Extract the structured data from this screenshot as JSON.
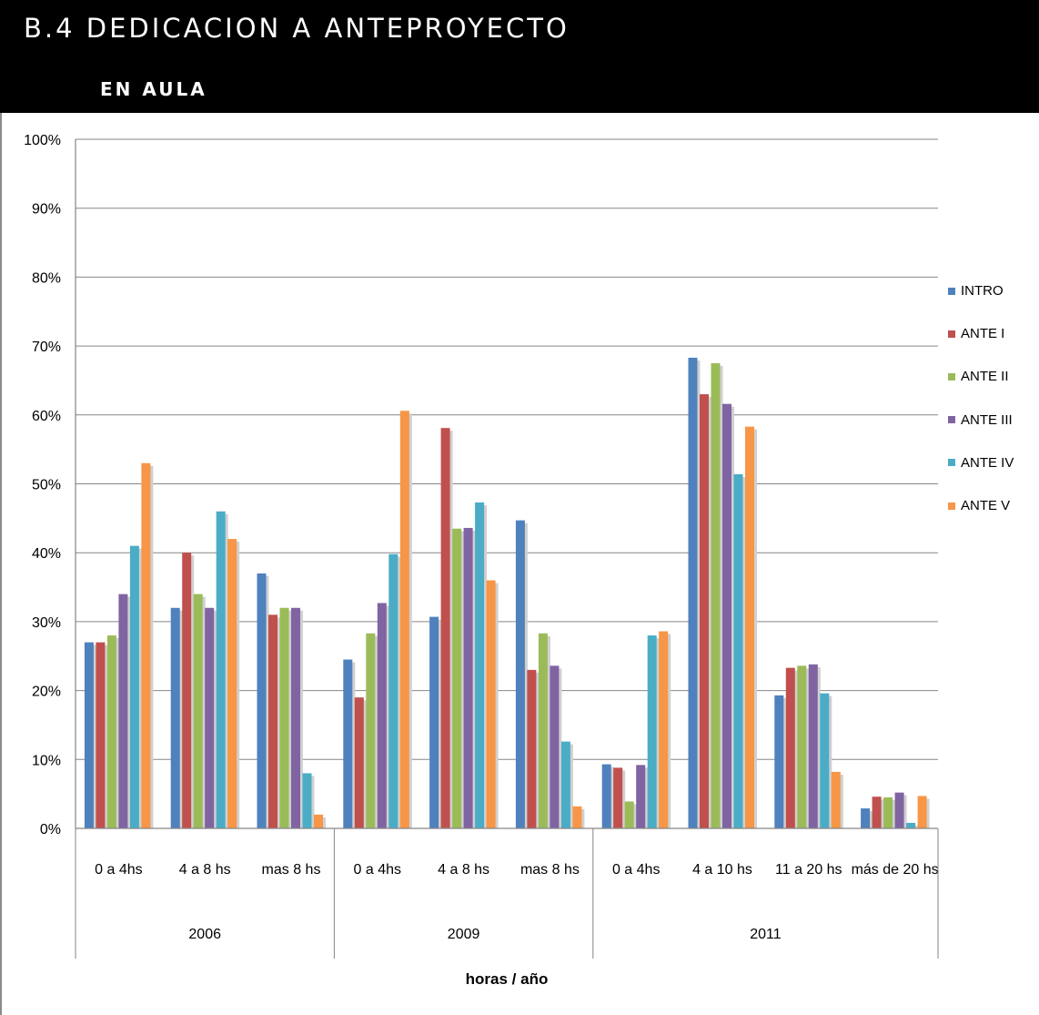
{
  "header": {
    "title": "B.4 DEDICACION A ANTEPROYECTO",
    "subtitle": "EN AULA"
  },
  "chart_data": {
    "type": "bar",
    "xlabel": "horas / año",
    "ylabel": "",
    "ylim": [
      0,
      100
    ],
    "yticks": [
      "0%",
      "10%",
      "20%",
      "30%",
      "40%",
      "50%",
      "60%",
      "70%",
      "80%",
      "90%",
      "100%"
    ],
    "grid": true,
    "legend_position": "right",
    "groups": [
      {
        "label": "2006",
        "categories": [
          "0 a 4hs",
          "4 a 8 hs",
          "mas 8 hs"
        ]
      },
      {
        "label": "2009",
        "categories": [
          "0 a 4hs",
          "4 a 8 hs",
          "mas 8 hs"
        ]
      },
      {
        "label": "2011",
        "categories": [
          "0 a 4hs",
          "4 a 10 hs",
          "11 a 20 hs",
          "más de 20 hs"
        ]
      }
    ],
    "categories": [
      "0 a 4hs",
      "4 a 8 hs",
      "mas 8 hs",
      "0 a 4hs",
      "4 a 8 hs",
      "mas 8 hs",
      "0 a 4hs",
      "4 a 10 hs",
      "11 a 20 hs",
      "más de 20 hs"
    ],
    "series": [
      {
        "name": "INTRO",
        "color": "#4f81bd",
        "values": [
          27,
          32,
          37,
          24.5,
          30.7,
          44.7,
          9.3,
          68.3,
          19.3,
          2.9
        ]
      },
      {
        "name": "ANTE I",
        "color": "#c0504d",
        "values": [
          27,
          40,
          31,
          19,
          58.1,
          23,
          8.8,
          63,
          23.3,
          4.6
        ]
      },
      {
        "name": "ANTE II",
        "color": "#9bbb59",
        "values": [
          28,
          34,
          32,
          28.3,
          43.5,
          28.3,
          3.9,
          67.5,
          23.6,
          4.5
        ]
      },
      {
        "name": "ANTE III",
        "color": "#8064a2",
        "values": [
          34,
          32,
          32,
          32.7,
          43.6,
          23.6,
          9.2,
          61.6,
          23.8,
          5.2
        ]
      },
      {
        "name": "ANTE IV",
        "color": "#4bacc6",
        "values": [
          41,
          46,
          8,
          39.8,
          47.3,
          12.6,
          28,
          51.4,
          19.6,
          0.8
        ]
      },
      {
        "name": "ANTE V",
        "color": "#f79646",
        "values": [
          53,
          42,
          2,
          60.6,
          36,
          3.2,
          28.6,
          58.3,
          8.2,
          4.7
        ]
      }
    ]
  }
}
